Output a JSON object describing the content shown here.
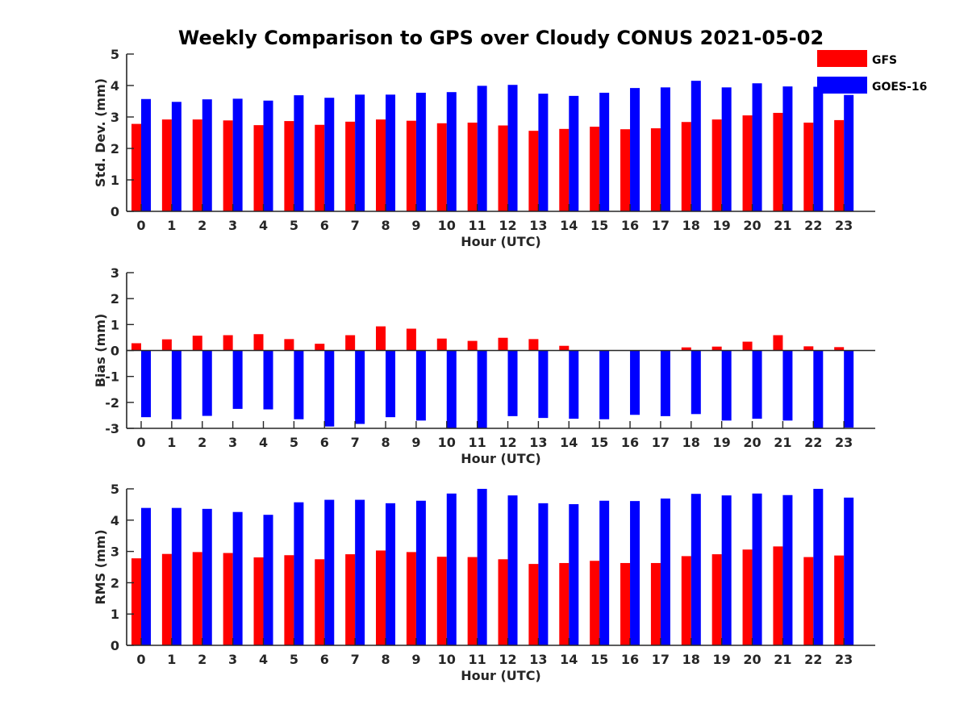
{
  "title": "Weekly Comparison to GPS over Cloudy CONUS 2021-05-02",
  "legend": {
    "placement": "top-right",
    "entries": [
      {
        "name": "GFS",
        "color": "#ff0000"
      },
      {
        "name": "GOES-16",
        "color": "#0000ff"
      }
    ]
  },
  "chart_data": [
    {
      "type": "bar",
      "xlabel": "Hour (UTC)",
      "ylabel": "Std. Dev. (mm)",
      "ylim": [
        0,
        5
      ],
      "yticks": [
        0,
        1,
        2,
        3,
        4,
        5
      ],
      "categories": [
        "0",
        "1",
        "2",
        "3",
        "4",
        "5",
        "6",
        "7",
        "8",
        "9",
        "10",
        "11",
        "12",
        "13",
        "14",
        "15",
        "16",
        "17",
        "18",
        "19",
        "20",
        "21",
        "22",
        "23"
      ],
      "series": [
        {
          "name": "GFS",
          "color": "#ff0000",
          "values": [
            2.78,
            2.92,
            2.92,
            2.89,
            2.74,
            2.87,
            2.75,
            2.85,
            2.92,
            2.88,
            2.8,
            2.82,
            2.73,
            2.56,
            2.62,
            2.69,
            2.61,
            2.64,
            2.84,
            2.92,
            3.05,
            3.13,
            2.82,
            2.9
          ]
        },
        {
          "name": "GOES-16",
          "color": "#0000ff",
          "values": [
            3.57,
            3.48,
            3.56,
            3.58,
            3.52,
            3.69,
            3.61,
            3.71,
            3.71,
            3.77,
            3.79,
            3.99,
            4.02,
            3.74,
            3.67,
            3.77,
            3.92,
            3.94,
            4.15,
            3.94,
            4.07,
            3.97,
            3.96,
            3.7
          ]
        }
      ]
    },
    {
      "type": "bar",
      "xlabel": "Hour (UTC)",
      "ylabel": "Bias (mm)",
      "ylim": [
        -3,
        3
      ],
      "yticks": [
        -3,
        -2,
        -1,
        0,
        1,
        2,
        3
      ],
      "categories": [
        "0",
        "1",
        "2",
        "3",
        "4",
        "5",
        "6",
        "7",
        "8",
        "9",
        "10",
        "11",
        "12",
        "13",
        "14",
        "15",
        "16",
        "17",
        "18",
        "19",
        "20",
        "21",
        "22",
        "23"
      ],
      "series": [
        {
          "name": "GFS",
          "color": "#ff0000",
          "values": [
            0.28,
            0.43,
            0.57,
            0.59,
            0.63,
            0.44,
            0.26,
            0.59,
            0.93,
            0.84,
            0.46,
            0.37,
            0.49,
            0.44,
            0.18,
            0.0,
            0.0,
            0.0,
            0.12,
            0.15,
            0.34,
            0.59,
            0.16,
            0.13
          ]
        },
        {
          "name": "GOES-16",
          "color": "#0000ff",
          "values": [
            -2.57,
            -2.65,
            -2.52,
            -2.25,
            -2.27,
            -2.65,
            -2.93,
            -2.83,
            -2.57,
            -2.7,
            -3.05,
            -3.1,
            -2.53,
            -2.6,
            -2.63,
            -2.65,
            -2.48,
            -2.53,
            -2.45,
            -2.7,
            -2.63,
            -2.7,
            -3.0,
            -2.97
          ]
        }
      ]
    },
    {
      "type": "bar",
      "xlabel": "Hour (UTC)",
      "ylabel": "RMS (mm)",
      "ylim": [
        0,
        5
      ],
      "yticks": [
        0,
        1,
        2,
        3,
        4,
        5
      ],
      "categories": [
        "0",
        "1",
        "2",
        "3",
        "4",
        "5",
        "6",
        "7",
        "8",
        "9",
        "10",
        "11",
        "12",
        "13",
        "14",
        "15",
        "16",
        "17",
        "18",
        "19",
        "20",
        "21",
        "22",
        "23"
      ],
      "series": [
        {
          "name": "GFS",
          "color": "#ff0000",
          "values": [
            2.78,
            2.92,
            2.98,
            2.95,
            2.81,
            2.88,
            2.75,
            2.91,
            3.03,
            2.98,
            2.83,
            2.82,
            2.75,
            2.6,
            2.63,
            2.7,
            2.63,
            2.63,
            2.85,
            2.91,
            3.06,
            3.16,
            2.82,
            2.87
          ]
        },
        {
          "name": "GOES-16",
          "color": "#0000ff",
          "values": [
            4.39,
            4.39,
            4.36,
            4.26,
            4.17,
            4.57,
            4.65,
            4.65,
            4.54,
            4.62,
            4.85,
            5.0,
            4.79,
            4.54,
            4.51,
            4.62,
            4.61,
            4.69,
            4.84,
            4.79,
            4.85,
            4.8,
            5.0,
            4.72
          ]
        }
      ]
    }
  ]
}
